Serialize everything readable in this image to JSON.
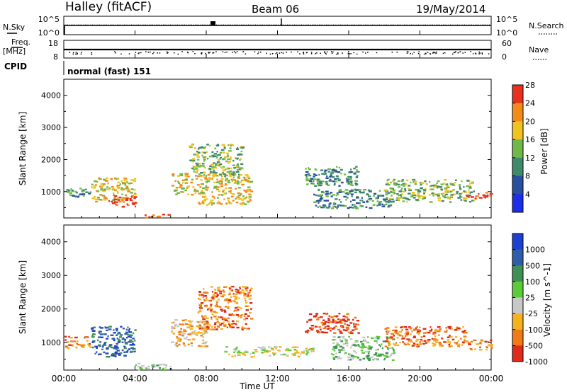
{
  "header": {
    "station": "Halley (fitACF)",
    "beam": "Beam 06",
    "date": "19/May/2014"
  },
  "sky_panel": {
    "left_label": "N.Sky",
    "right_label": "N.Search",
    "left_ticks": [
      "10^5",
      "10^0"
    ],
    "right_ticks": [
      "10^5",
      "10^0"
    ]
  },
  "freq_panel": {
    "left_label_1": "Freq.",
    "left_label_2": "[MHz]",
    "right_label": "Nave",
    "left_ticks": [
      "18",
      "8"
    ],
    "right_ticks": [
      "60",
      "0"
    ]
  },
  "cpid": {
    "label": "CPID",
    "value": "normal (fast) 151"
  },
  "x_axis": {
    "label": "Time UT",
    "ticks": [
      "00:00",
      "04:00",
      "08:00",
      "12:00",
      "16:00",
      "20:00",
      "00:00"
    ]
  },
  "chart_data": [
    {
      "type": "heatmap",
      "title": "",
      "xlabel": "Time UT",
      "ylabel": "Slant Range [km]",
      "xlim": [
        0,
        24
      ],
      "ylim": [
        180,
        4500
      ],
      "y_ticks": [
        1000,
        2000,
        3000,
        4000
      ],
      "colorbar": {
        "label": "Power [dB]",
        "ticks": [
          "4",
          "8",
          "12",
          "16",
          "20",
          "24",
          "28"
        ],
        "colors": [
          "#1d2ee8",
          "#2a4f9e",
          "#3f8a6c",
          "#71b84a",
          "#f0c321",
          "#f38b1b",
          "#e8301c"
        ]
      },
      "regions": [
        {
          "x": [
            0.0,
            1.5
          ],
          "y": [
            850,
            1150
          ],
          "level": 2
        },
        {
          "x": [
            1.5,
            4.0
          ],
          "y": [
            700,
            1450
          ],
          "level": 4
        },
        {
          "x": [
            2.5,
            4.0
          ],
          "y": [
            550,
            900
          ],
          "level": 6
        },
        {
          "x": [
            4.5,
            6.0
          ],
          "y": [
            200,
            320
          ],
          "level": 6
        },
        {
          "x": [
            6.0,
            10.5
          ],
          "y": [
            900,
            1600
          ],
          "level": 4
        },
        {
          "x": [
            7.0,
            10.0
          ],
          "y": [
            1500,
            2500
          ],
          "level": 3
        },
        {
          "x": [
            7.5,
            10.5
          ],
          "y": [
            600,
            900
          ],
          "level": 4
        },
        {
          "x": [
            13.5,
            16.5
          ],
          "y": [
            1200,
            1800
          ],
          "level": 2
        },
        {
          "x": [
            14.0,
            18.5
          ],
          "y": [
            500,
            1100
          ],
          "level": 2
        },
        {
          "x": [
            18.0,
            23.0
          ],
          "y": [
            700,
            1400
          ],
          "level": 3
        },
        {
          "x": [
            22.5,
            24.0
          ],
          "y": [
            800,
            1000
          ],
          "level": 6
        }
      ]
    },
    {
      "type": "heatmap",
      "title": "",
      "xlabel": "Time UT",
      "ylabel": "Slant Range [km]",
      "xlim": [
        0,
        24
      ],
      "ylim": [
        180,
        4500
      ],
      "y_ticks": [
        1000,
        2000,
        3000,
        4000
      ],
      "colorbar": {
        "label": "Velocity [m s^-1]",
        "ticks": [
          "1000",
          "500",
          "100",
          "25",
          "-25",
          "-100",
          "-500",
          "-1000"
        ],
        "colors": [
          "#1e3fcf",
          "#2f5ea8",
          "#3f9055",
          "#5bcb3a",
          "#c8c8c8",
          "#f5b21e",
          "#f07a18",
          "#e02a1a"
        ]
      },
      "regions": [
        {
          "x": [
            0.0,
            1.5
          ],
          "y": [
            850,
            1200
          ],
          "level": 6
        },
        {
          "x": [
            1.5,
            4.0
          ],
          "y": [
            600,
            1500
          ],
          "level": 1
        },
        {
          "x": [
            4.0,
            6.0
          ],
          "y": [
            200,
            400
          ],
          "level": 3
        },
        {
          "x": [
            6.0,
            8.0
          ],
          "y": [
            900,
            1700
          ],
          "level": 5
        },
        {
          "x": [
            7.5,
            10.5
          ],
          "y": [
            1400,
            2700
          ],
          "level": 6
        },
        {
          "x": [
            9.0,
            14.0
          ],
          "y": [
            600,
            900
          ],
          "level": 4
        },
        {
          "x": [
            13.5,
            16.5
          ],
          "y": [
            1300,
            1900
          ],
          "level": 7
        },
        {
          "x": [
            15.0,
            18.5
          ],
          "y": [
            500,
            1200
          ],
          "level": 3
        },
        {
          "x": [
            18.0,
            22.5
          ],
          "y": [
            900,
            1500
          ],
          "level": 6
        },
        {
          "x": [
            22.5,
            24.0
          ],
          "y": [
            800,
            1100
          ],
          "level": 6
        }
      ]
    }
  ]
}
